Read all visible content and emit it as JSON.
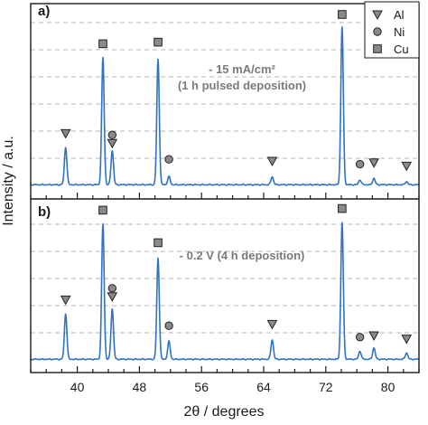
{
  "chart_data": {
    "type": "line",
    "xlabel": "2θ / degrees",
    "ylabel": "Intensity / a.u.",
    "xlim": [
      34,
      84
    ],
    "xticks": [
      40,
      48,
      56,
      64,
      72,
      80
    ],
    "legend": {
      "placement": "top-right",
      "entries": [
        {
          "label": "Al",
          "marker": "triangle-down"
        },
        {
          "label": "Ni",
          "marker": "circle"
        },
        {
          "label": "Cu",
          "marker": "square"
        }
      ]
    },
    "marker_colors": {
      "fill": "#8a8a8a",
      "stroke": "#222222"
    },
    "line_color": "#2f72c4",
    "panels": [
      {
        "label": "a)",
        "annotation": [
          "- 15 mA/cm²",
          "(1 h pulsed deposition)"
        ],
        "peaks": [
          {
            "x": 38.5,
            "h": 0.23
          },
          {
            "x": 43.3,
            "h": 0.78
          },
          {
            "x": 44.5,
            "h": 0.21
          },
          {
            "x": 50.4,
            "h": 0.77
          },
          {
            "x": 51.8,
            "h": 0.05
          },
          {
            "x": 65.1,
            "h": 0.05
          },
          {
            "x": 74.1,
            "h": 0.97
          },
          {
            "x": 76.4,
            "h": 0.03
          },
          {
            "x": 78.2,
            "h": 0.04
          },
          {
            "x": 82.4,
            "h": 0.02
          }
        ],
        "markers": [
          {
            "x": 38.5,
            "type": "Al",
            "y": 0.32
          },
          {
            "x": 43.3,
            "type": "Cu",
            "y": 0.87
          },
          {
            "x": 44.5,
            "type": "Ni",
            "y": 0.31
          },
          {
            "x": 44.5,
            "type": "Al",
            "y": 0.26
          },
          {
            "x": 50.4,
            "type": "Cu",
            "y": 0.88
          },
          {
            "x": 51.8,
            "type": "Ni",
            "y": 0.16
          },
          {
            "x": 65.1,
            "type": "Al",
            "y": 0.15
          },
          {
            "x": 74.1,
            "type": "Cu",
            "y": 1.05
          },
          {
            "x": 76.4,
            "type": "Ni",
            "y": 0.13
          },
          {
            "x": 78.2,
            "type": "Al",
            "y": 0.14
          },
          {
            "x": 82.4,
            "type": "Al",
            "y": 0.12
          }
        ]
      },
      {
        "label": "b)",
        "annotation": [
          "- 0.2 V (4 h deposition)"
        ],
        "peaks": [
          {
            "x": 38.5,
            "h": 0.28
          },
          {
            "x": 43.3,
            "h": 0.83
          },
          {
            "x": 44.5,
            "h": 0.31
          },
          {
            "x": 50.4,
            "h": 0.62
          },
          {
            "x": 51.8,
            "h": 0.11
          },
          {
            "x": 65.1,
            "h": 0.12
          },
          {
            "x": 74.1,
            "h": 0.84
          },
          {
            "x": 76.4,
            "h": 0.05
          },
          {
            "x": 78.2,
            "h": 0.07
          },
          {
            "x": 82.4,
            "h": 0.04
          }
        ],
        "markers": [
          {
            "x": 38.5,
            "type": "Al",
            "y": 0.37
          },
          {
            "x": 43.3,
            "type": "Cu",
            "y": 0.92
          },
          {
            "x": 44.5,
            "type": "Ni",
            "y": 0.44
          },
          {
            "x": 44.5,
            "type": "Al",
            "y": 0.39
          },
          {
            "x": 50.4,
            "type": "Cu",
            "y": 0.72
          },
          {
            "x": 51.8,
            "type": "Ni",
            "y": 0.21
          },
          {
            "x": 65.1,
            "type": "Al",
            "y": 0.22
          },
          {
            "x": 74.1,
            "type": "Cu",
            "y": 0.93
          },
          {
            "x": 76.4,
            "type": "Ni",
            "y": 0.14
          },
          {
            "x": 78.2,
            "type": "Al",
            "y": 0.15
          },
          {
            "x": 82.4,
            "type": "Al",
            "y": 0.13
          }
        ]
      }
    ]
  }
}
